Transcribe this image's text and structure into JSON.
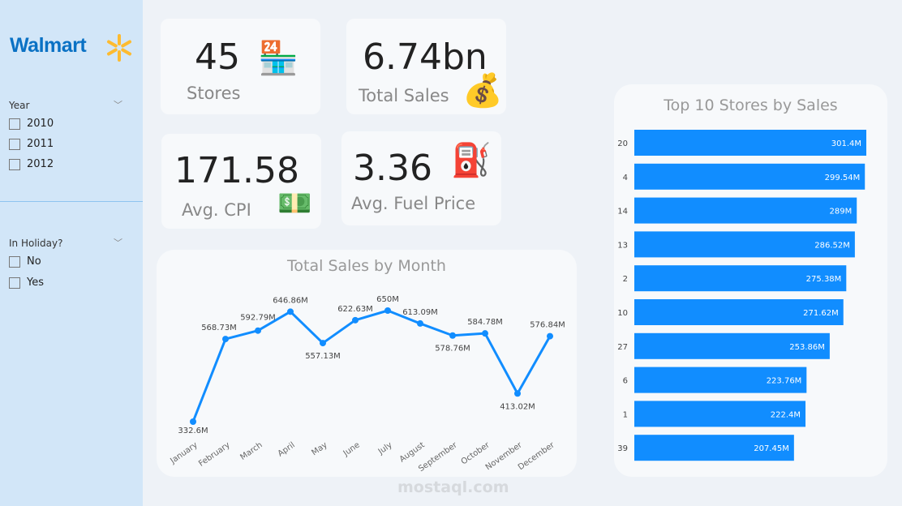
{
  "sidebar": {
    "logo": "Walmart",
    "year": {
      "title": "Year",
      "options": [
        "2010",
        "2011",
        "2012"
      ]
    },
    "holiday": {
      "title": "In Holiday?",
      "options": [
        "No",
        "Yes"
      ]
    }
  },
  "kpis": {
    "stores": {
      "value": "45",
      "label": "Stores",
      "icon": "store-icon"
    },
    "sales": {
      "value": "6.74bn",
      "label": "Total Sales",
      "icon": "money-icon"
    },
    "cpi": {
      "value": "171.58",
      "label": "Avg. CPI",
      "icon": "cash-register-icon"
    },
    "fuel": {
      "value": "3.36",
      "label": "Avg. Fuel Price",
      "icon": "fuel-pump-icon"
    }
  },
  "watermark": "mostaql.com",
  "colors": {
    "accent": "#118dff",
    "sidebar": "#d2e6f8",
    "logo": "#0a71c4",
    "spark": "#fdbb30"
  },
  "chart_data": [
    {
      "type": "line",
      "title": "Total Sales by Month",
      "categories": [
        "January",
        "February",
        "March",
        "April",
        "May",
        "June",
        "July",
        "August",
        "September",
        "October",
        "November",
        "December"
      ],
      "values": [
        332.6,
        568.73,
        592.79,
        646.86,
        557.13,
        622.63,
        650,
        613.09,
        578.76,
        584.78,
        413.02,
        576.84
      ],
      "labels": [
        "332.6M",
        "568.73M",
        "592.79M",
        "646.86M",
        "557.13M",
        "622.63M",
        "650M",
        "613.09M",
        "578.76M",
        "584.78M",
        "413.02M",
        "576.84M"
      ],
      "grid": false
    },
    {
      "type": "bar",
      "orientation": "horizontal",
      "title": "Top 10 Stores by Sales",
      "categories": [
        "20",
        "4",
        "14",
        "13",
        "2",
        "10",
        "27",
        "6",
        "1",
        "39"
      ],
      "values": [
        301.4,
        299.54,
        289,
        286.52,
        275.38,
        271.62,
        253.86,
        223.76,
        222.4,
        207.45
      ],
      "labels": [
        "301.4M",
        "299.54M",
        "289M",
        "286.52M",
        "275.38M",
        "271.62M",
        "253.86M",
        "223.76M",
        "222.4M",
        "207.45M"
      ]
    }
  ]
}
